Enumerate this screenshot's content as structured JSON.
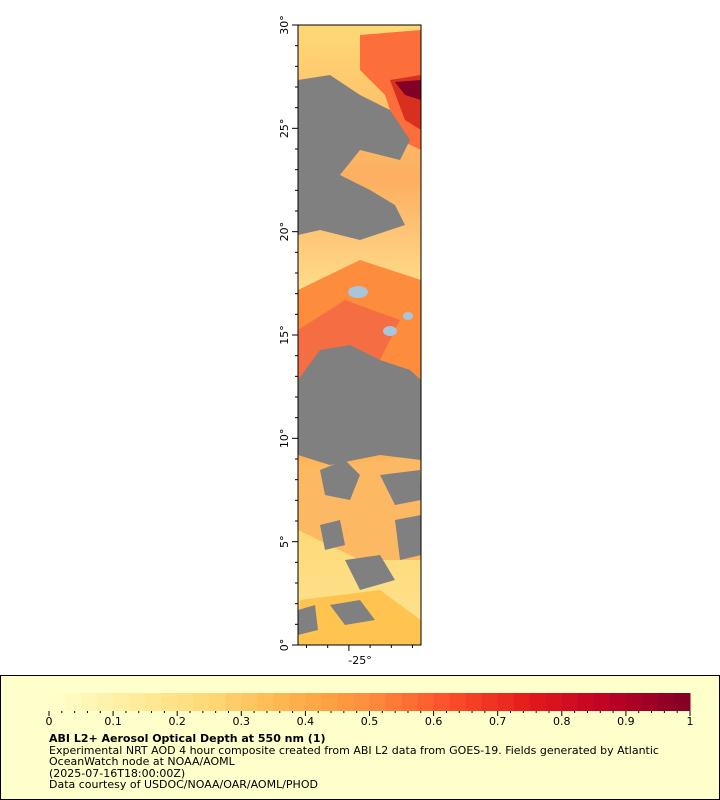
{
  "map": {
    "lat_labels": [
      "0°",
      "5°",
      "10°",
      "15°",
      "20°",
      "25°",
      "30°"
    ],
    "lon_label": "-25°",
    "lat_range": [
      0,
      30
    ],
    "colors": {
      "land_mask": "#808080",
      "water": "#a9c5dc",
      "frame": "#000000"
    }
  },
  "legend": {
    "tick_labels": [
      "0",
      "0.1",
      "0.2",
      "0.3",
      "0.4",
      "0.5",
      "0.6",
      "0.7",
      "0.8",
      "0.9",
      "1"
    ],
    "range": [
      0,
      1
    ],
    "colors": [
      "#ffffcc",
      "#ffeda0",
      "#fed976",
      "#feb24c",
      "#fd8d3c",
      "#fc4e2a",
      "#e31a1c",
      "#bd0026",
      "#800026"
    ]
  },
  "caption": {
    "title": "ABI L2+ Aerosol Optical Depth at 550 nm (1)",
    "line1": "Experimental NRT AOD 4 hour composite created from ABI L2 data from GOES-19. Fields generated by Atlantic",
    "line2": "OceanWatch node at NOAA/AOML",
    "line3": "(2025-07-16T18:00:00Z)",
    "line4": "Data courtesy of USDOC/NOAA/OAR/AOML/PHOD"
  }
}
